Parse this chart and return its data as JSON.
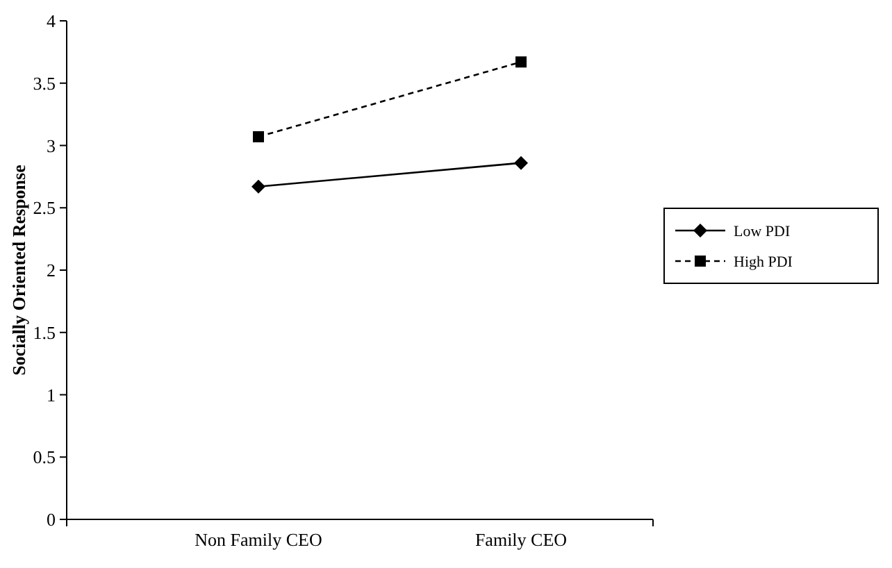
{
  "chart_data": {
    "type": "line",
    "ylabel": "Socially Oriented Response",
    "categories": [
      "Non Family CEO",
      "Family CEO"
    ],
    "ylim": [
      0,
      4
    ],
    "yticks": [
      0,
      0.5,
      1,
      1.5,
      2,
      2.5,
      3,
      3.5,
      4
    ],
    "grid": false,
    "legend": "right",
    "series": [
      {
        "name": "Low PDI",
        "color": "#000000",
        "values": [
          2.67,
          2.86
        ],
        "marker": "diamond",
        "line_style": "solid"
      },
      {
        "name": "High PDI",
        "color": "#000000",
        "values": [
          3.07,
          3.67
        ],
        "marker": "square",
        "line_style": "dashed"
      }
    ]
  }
}
